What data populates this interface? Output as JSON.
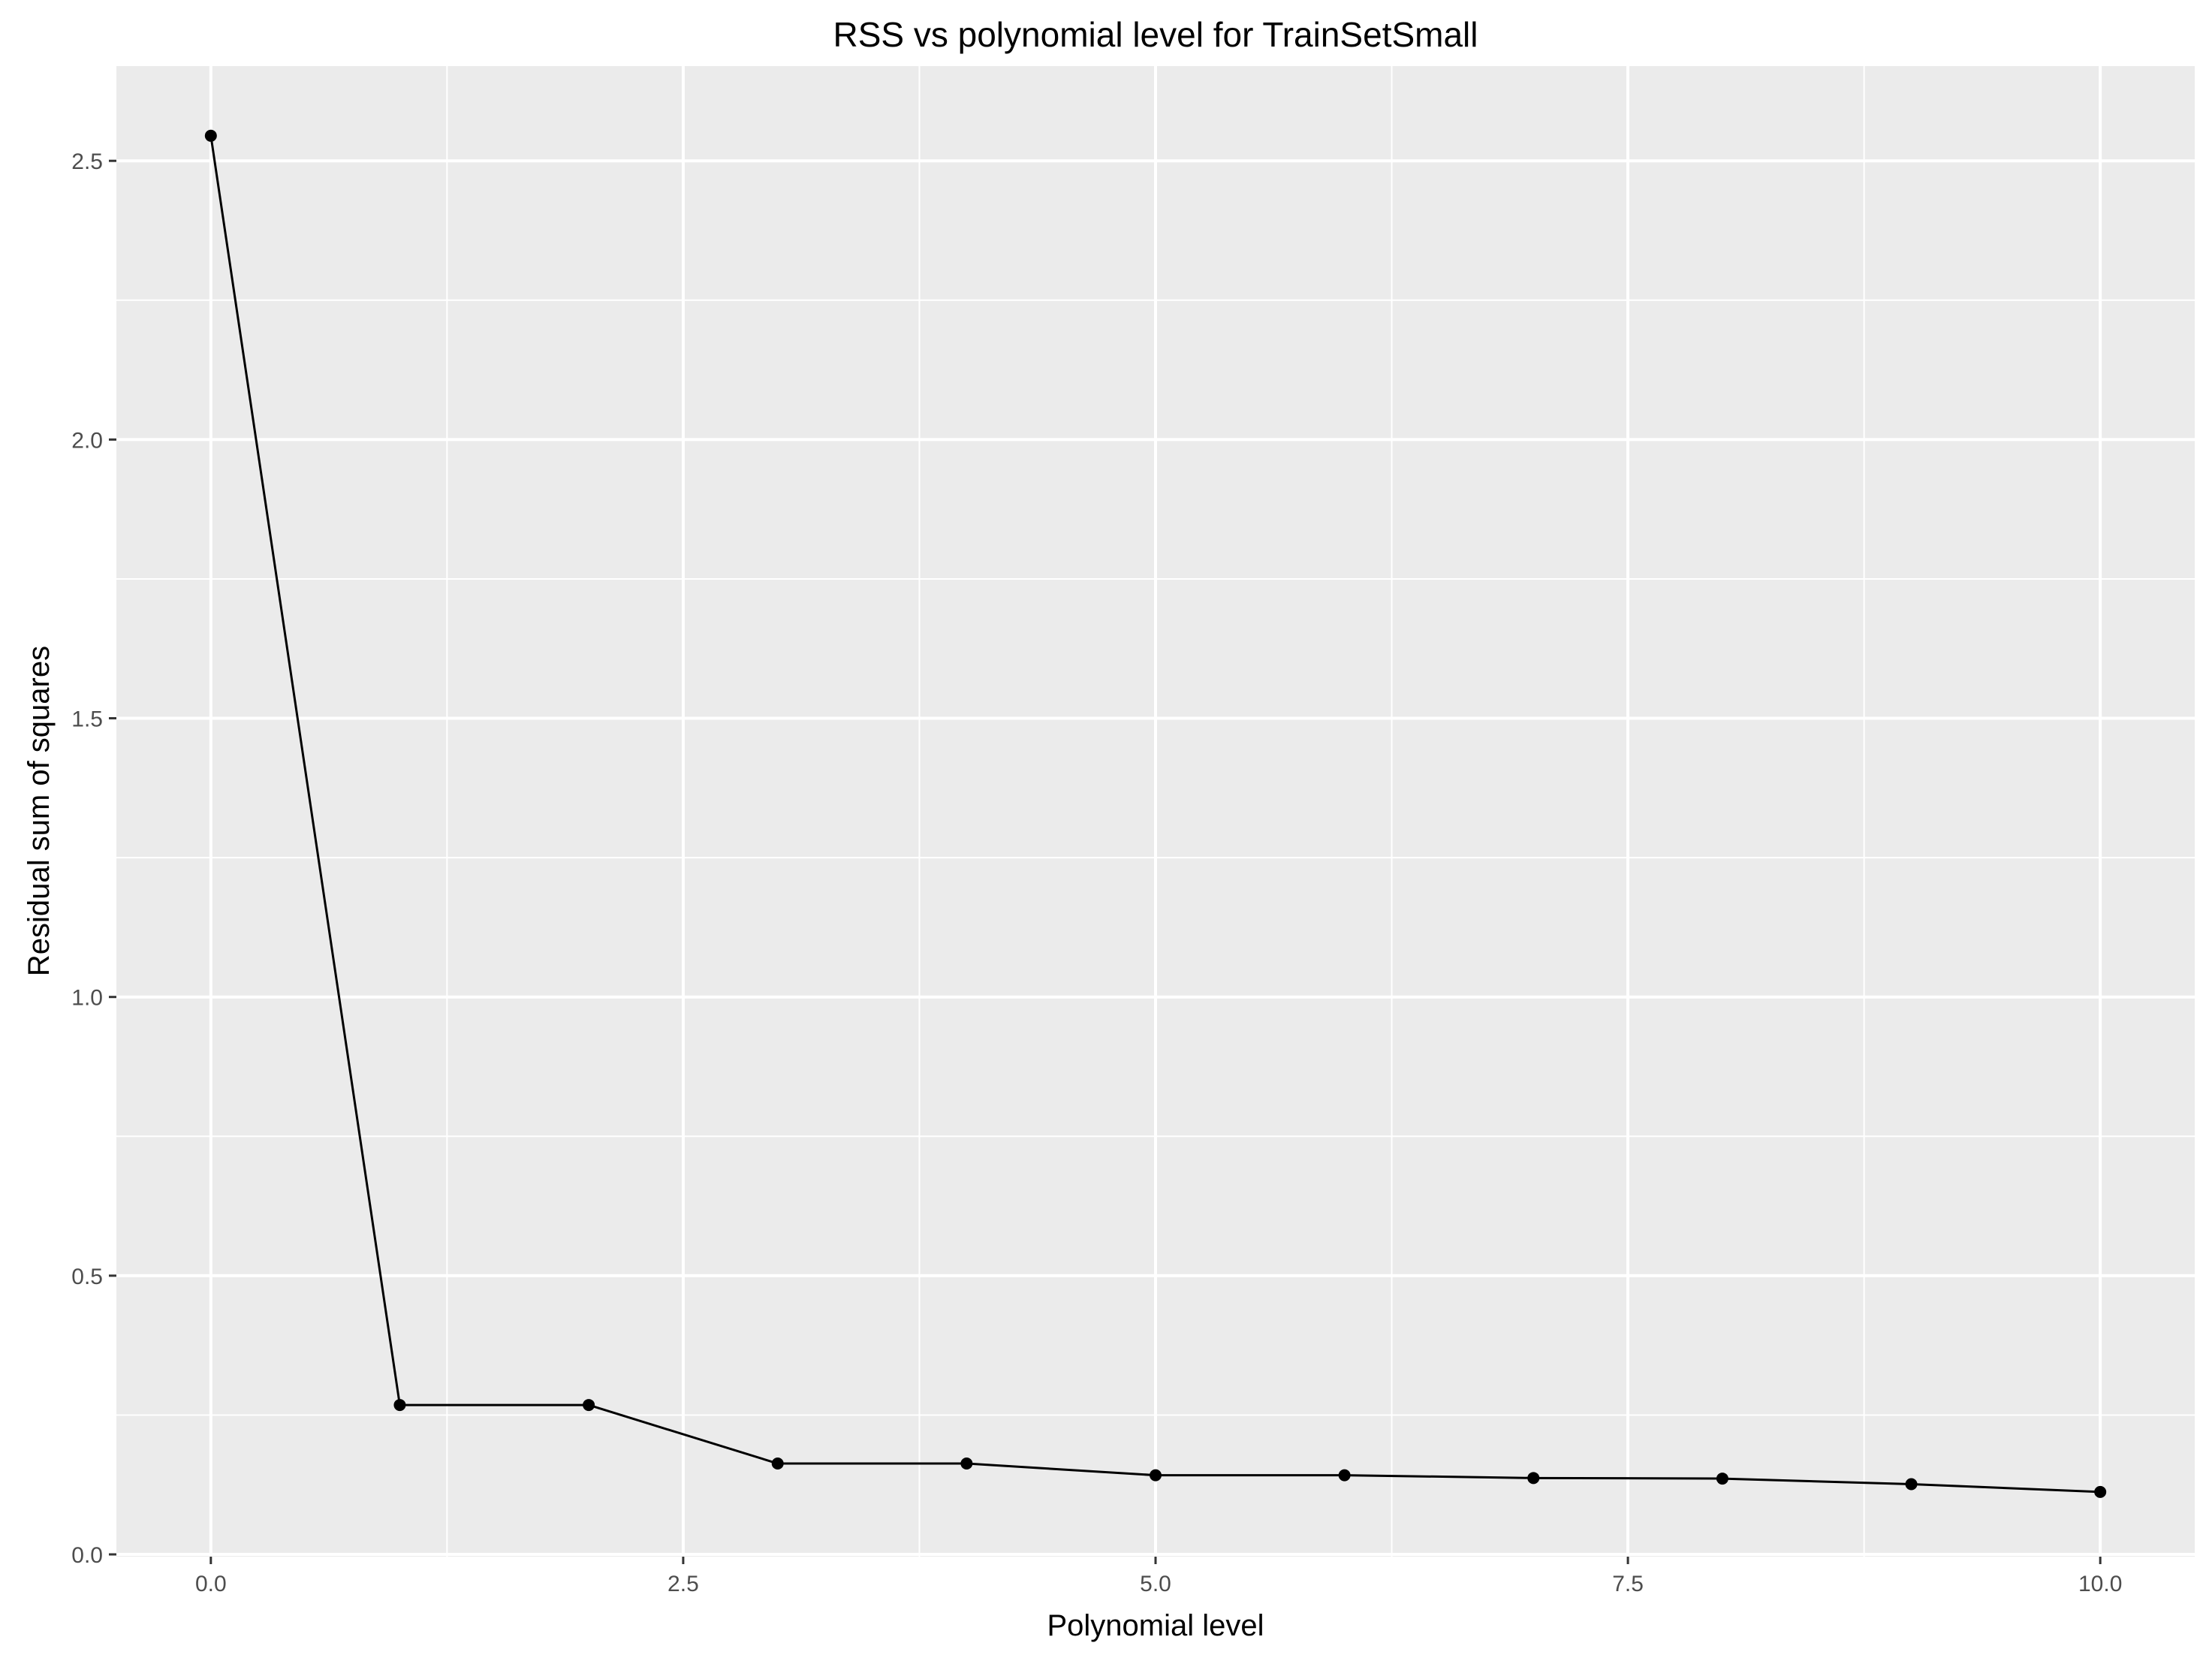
{
  "chart_data": {
    "type": "line",
    "title": "RSS vs polynomial level for TrainSetSmall",
    "xlabel": "Polynomial level",
    "ylabel": "Residual sum of squares",
    "xlim": [
      -0.5,
      10.5
    ],
    "ylim": [
      -0.004,
      2.67
    ],
    "x_ticks": [
      0,
      2.5,
      5,
      7.5,
      10
    ],
    "x_tick_labels": [
      "0.0",
      "2.5",
      "5.0",
      "7.5",
      "10.0"
    ],
    "x_minor_ticks": [
      1.25,
      3.75,
      6.25,
      8.75
    ],
    "y_ticks": [
      0,
      0.5,
      1,
      1.5,
      2,
      2.5
    ],
    "y_tick_labels": [
      "0.0",
      "0.5",
      "1.0",
      "1.5",
      "2.0",
      "2.5"
    ],
    "y_minor_ticks": [
      0.25,
      0.75,
      1.25,
      1.75,
      2.25
    ],
    "grid": true,
    "legend": "none",
    "series": [
      {
        "x": [
          0,
          1,
          2,
          3,
          4,
          5,
          6,
          7,
          8,
          9,
          10
        ],
        "values": [
          2.545,
          0.268,
          0.268,
          0.163,
          0.163,
          0.142,
          0.142,
          0.137,
          0.136,
          0.126,
          0.112
        ],
        "color": "#000000"
      }
    ],
    "panel_color": "#ebebeb",
    "grid_color": "#ffffff"
  }
}
